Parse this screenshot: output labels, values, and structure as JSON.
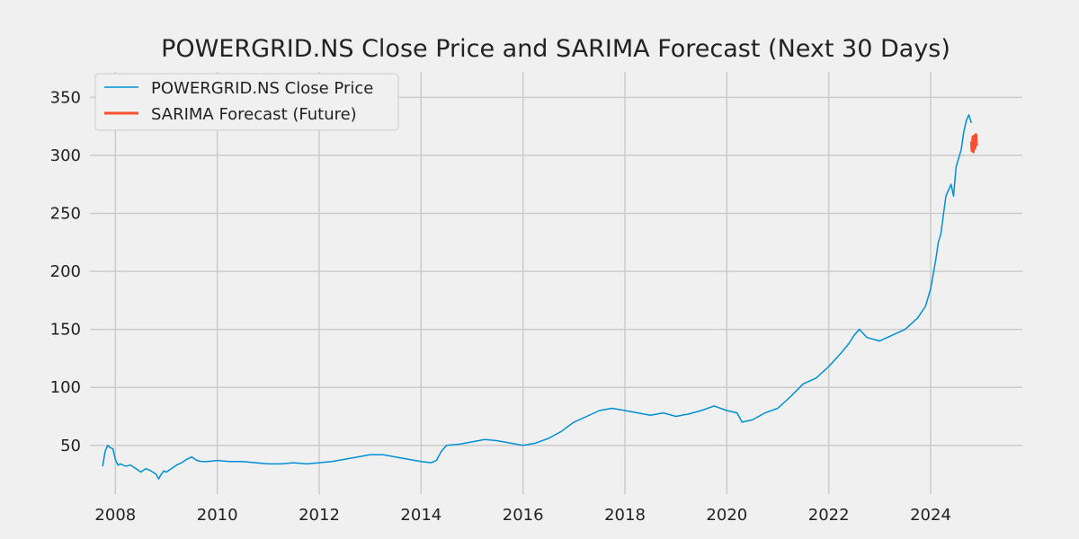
{
  "chart_data": {
    "type": "line",
    "title": "POWERGRID.NS Close Price and SARIMA Forecast (Next 30 Days)",
    "xlabel": "",
    "ylabel": "",
    "x_ticks": [
      "2008",
      "2010",
      "2012",
      "2014",
      "2016",
      "2018",
      "2020",
      "2022",
      "2024"
    ],
    "y_ticks": [
      50,
      100,
      150,
      200,
      250,
      300,
      350
    ],
    "xlim": [
      2007.5,
      2025.8
    ],
    "ylim": [
      8,
      372
    ],
    "grid": true,
    "legend": "top-left",
    "colors": {
      "close": "#008fd5",
      "forecast": "#fc4f30"
    },
    "series": [
      {
        "name": "POWERGRID.NS Close Price",
        "x": [
          2007.75,
          2007.8,
          2007.85,
          2007.9,
          2007.95,
          2008.0,
          2008.05,
          2008.1,
          2008.2,
          2008.3,
          2008.4,
          2008.5,
          2008.6,
          2008.7,
          2008.8,
          2008.85,
          2008.9,
          2008.95,
          2009.0,
          2009.1,
          2009.2,
          2009.3,
          2009.4,
          2009.5,
          2009.6,
          2009.7,
          2009.8,
          2010.0,
          2010.25,
          2010.5,
          2010.75,
          2011.0,
          2011.25,
          2011.5,
          2011.75,
          2012.0,
          2012.25,
          2012.5,
          2012.75,
          2013.0,
          2013.25,
          2013.5,
          2013.75,
          2014.0,
          2014.2,
          2014.3,
          2014.4,
          2014.5,
          2014.75,
          2015.0,
          2015.25,
          2015.5,
          2015.75,
          2016.0,
          2016.25,
          2016.5,
          2016.75,
          2017.0,
          2017.25,
          2017.5,
          2017.75,
          2018.0,
          2018.25,
          2018.5,
          2018.75,
          2019.0,
          2019.25,
          2019.5,
          2019.75,
          2020.0,
          2020.2,
          2020.3,
          2020.5,
          2020.75,
          2021.0,
          2021.25,
          2021.5,
          2021.75,
          2022.0,
          2022.25,
          2022.4,
          2022.5,
          2022.6,
          2022.75,
          2023.0,
          2023.25,
          2023.5,
          2023.75,
          2023.9,
          2024.0,
          2024.1,
          2024.15,
          2024.2,
          2024.3,
          2024.4,
          2024.45,
          2024.5,
          2024.6,
          2024.65,
          2024.7,
          2024.75,
          2024.8
        ],
        "values": [
          32,
          45,
          50,
          48,
          47,
          38,
          33,
          34,
          32,
          33,
          30,
          27,
          30,
          28,
          25,
          21,
          25,
          28,
          27,
          30,
          33,
          35,
          38,
          40,
          37,
          36,
          36,
          37,
          36,
          36,
          35,
          34,
          34,
          35,
          34,
          35,
          36,
          38,
          40,
          42,
          42,
          40,
          38,
          36,
          35,
          37,
          45,
          50,
          51,
          53,
          55,
          54,
          52,
          50,
          52,
          56,
          62,
          70,
          75,
          80,
          82,
          80,
          78,
          76,
          78,
          75,
          77,
          80,
          84,
          80,
          78,
          70,
          72,
          78,
          82,
          92,
          103,
          108,
          118,
          130,
          138,
          145,
          150,
          143,
          140,
          145,
          150,
          160,
          170,
          185,
          210,
          225,
          232,
          265,
          275,
          265,
          290,
          305,
          320,
          330,
          335,
          328
        ]
      },
      {
        "name": "SARIMA Forecast (Future)",
        "x": [
          2024.8,
          2024.81,
          2024.82,
          2024.83,
          2024.84,
          2024.85,
          2024.86,
          2024.87,
          2024.88,
          2024.89,
          2024.9
        ],
        "values": [
          312,
          304,
          310,
          316,
          303,
          314,
          317,
          306,
          313,
          318,
          308
        ]
      }
    ]
  }
}
